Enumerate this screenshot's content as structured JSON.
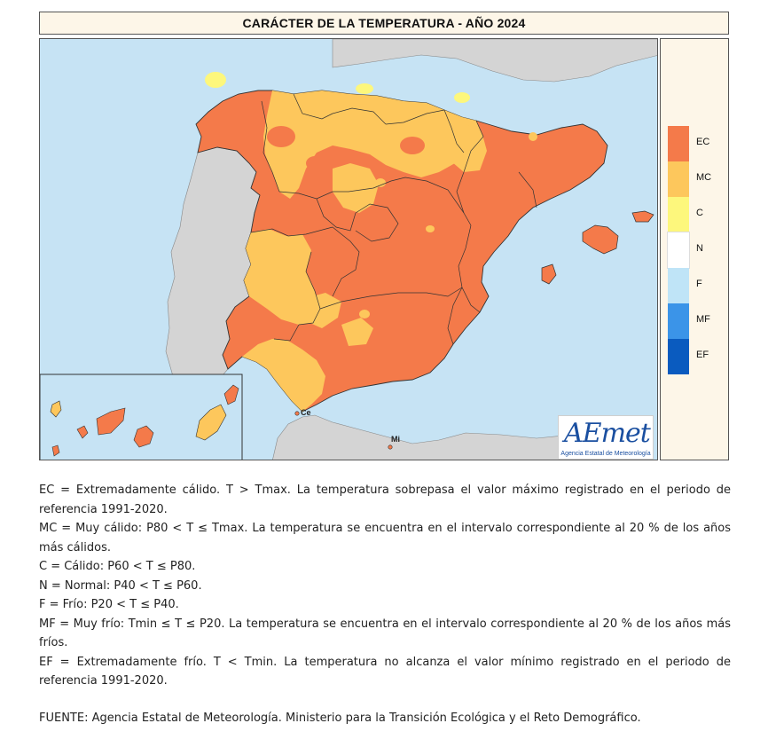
{
  "title": "CARÁCTER DE LA TEMPERATURA - AÑO 2024",
  "legend": [
    {
      "code": "EC",
      "color": "#f47a4a"
    },
    {
      "code": "MC",
      "color": "#fdc75c"
    },
    {
      "code": "C",
      "color": "#fdf77c"
    },
    {
      "code": "N",
      "color": "#ffffff"
    },
    {
      "code": "F",
      "color": "#bfe4f7"
    },
    {
      "code": "MF",
      "color": "#3b94e8"
    },
    {
      "code": "EF",
      "color": "#0a5bbf"
    }
  ],
  "colors": {
    "sea": "#c6e3f4",
    "foreign_land": "#d4d4d4",
    "border": "#333333"
  },
  "cities": {
    "ceuta": "Ce",
    "melilla": "Mi"
  },
  "logo": {
    "text": "AEmet",
    "subtitle": "Agencia Estatal de Meteorología"
  },
  "notes": [
    "EC = Extremadamente cálido. T > Tmax. La temperatura sobrepasa el valor máximo registrado en el periodo de referencia 1991-2020.",
    "MC = Muy cálido: P80 < T ≤ Tmax. La temperatura se encuentra en el intervalo correspondiente al 20 % de los años más cálidos.",
    "C = Cálido: P60 < T ≤ P80.",
    "N = Normal: P40 < T ≤ P60.",
    "F = Frío: P20 < T ≤ P40.",
    "MF = Muy frío: Tmin ≤ T ≤ P20. La temperatura se encuentra en el intervalo correspondiente al 20 % de los años más fríos.",
    "EF = Extremadamente frío. T < Tmin. La temperatura no alcanza el valor mínimo registrado en el periodo de referencia 1991-2020."
  ],
  "source": "FUENTE: Agencia Estatal de Meteorología. Ministerio para la Transición Ecológica y el Reto Demográfico."
}
